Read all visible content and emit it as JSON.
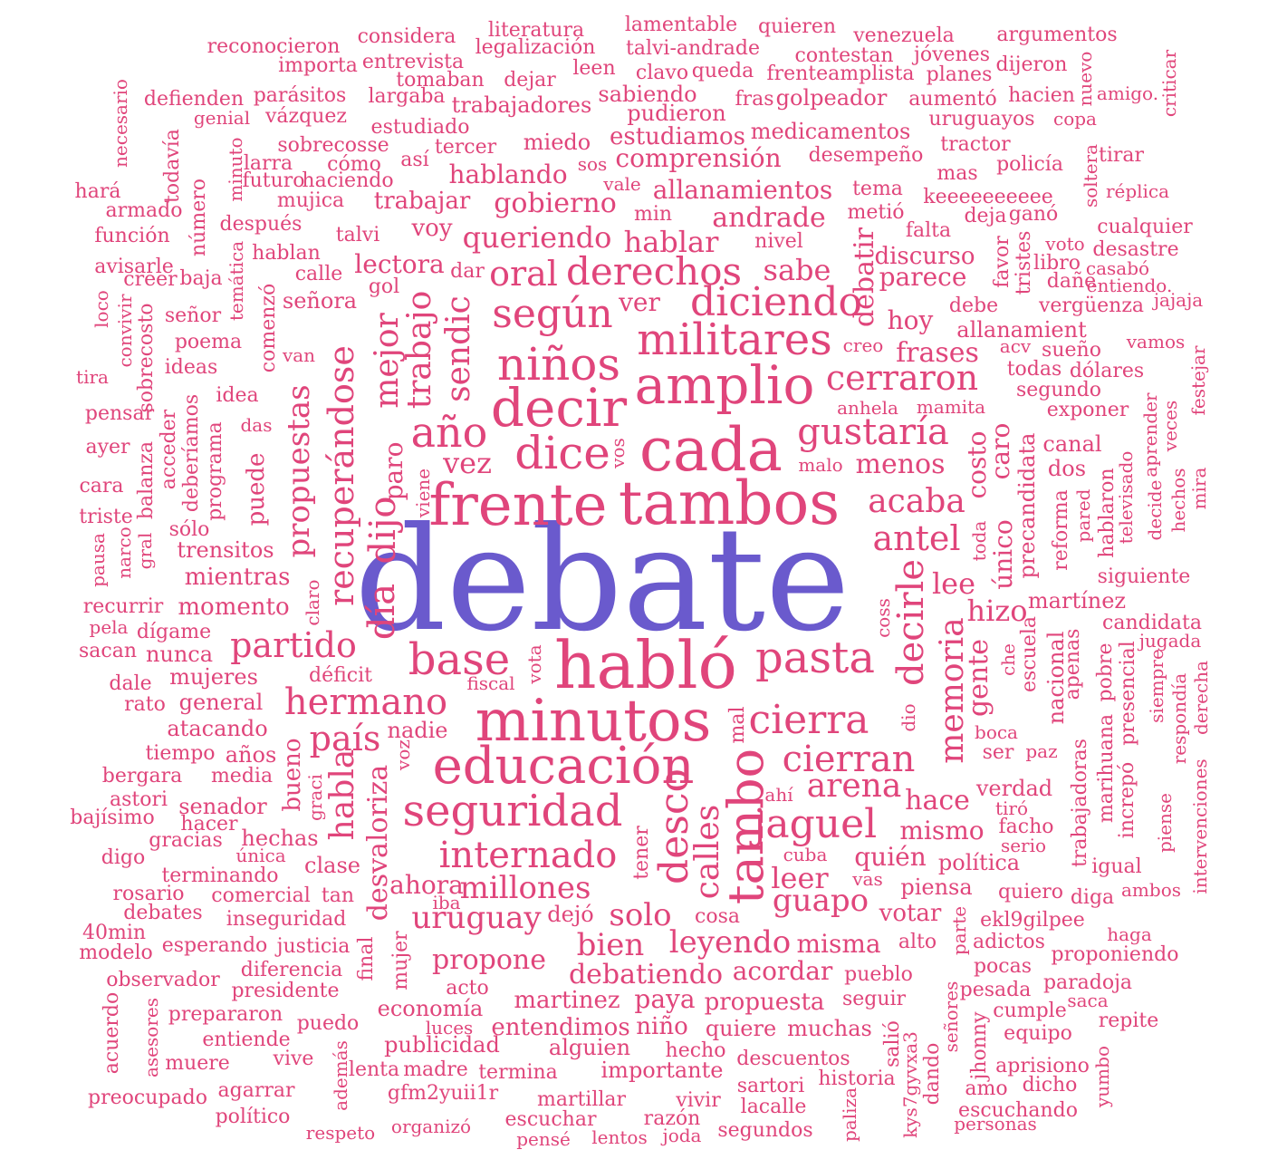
{
  "colors": {
    "primary": "#6a5acd",
    "secondary": "#e0457b",
    "background": "#ffffff"
  },
  "words": {
    "debate": "debate",
    "hablo": "habló",
    "minutos": "minutos",
    "tambos": "tambos",
    "frente": "frente",
    "cada": "cada",
    "amplio": "amplio",
    "educacion": "educación",
    "decir": "decir",
    "seguridad": "seguridad",
    "tambo": "tambo",
    "dice": "dice",
    "ninos": "niños",
    "militares": "militares",
    "internado": "internado",
    "base": "base",
    "pasta": "pasta",
    "diciendo": "diciendo",
    "cierra": "cierra",
    "hermano": "hermano",
    "ano": "año",
    "gustaria": "gustaría",
    "cerraron": "cerraron",
    "derechos": "derechos",
    "segun": "según",
    "cierran": "cierran",
    "desco": "desco",
    "recuperandose": "recuperándose",
    "dia": "día",
    "dijo": "dijo",
    "jaguel": "jaguel",
    "decirle": "decirle",
    "memoria": "memoria",
    "partido": "partido",
    "antel": "antel",
    "acaba": "acaba",
    "calles": "calles",
    "arena": "arena",
    "millones": "millones",
    "uruguay": "uruguay",
    "pais": "país",
    "oral": "oral",
    "sendic": "sendic",
    "propuestas": "propuestas",
    "mejor": "mejor",
    "trabajo": "trabajo",
    "habla": "habla",
    "desvaloriza": "desvaloriza",
    "guapo": "guapo",
    "leer": "leer",
    "leyendo": "leyendo",
    "solo": "solo",
    "bien": "bien",
    "propone": "propone",
    "debatiendo": "debatiendo",
    "queriendo": "queriendo",
    "hablar": "hablar",
    "andrade": "andrade",
    "sabe": "sabe",
    "hizo": "hizo",
    "lee": "lee",
    "gente": "gente",
    "hace": "hace",
    "mismo": "mismo",
    "quien": "quién",
    "gobierno": "gobierno",
    "hablando": "hablando",
    "allanamientos": "allanamientos",
    "comprension": "comprensión",
    "estudiamos": "estudiamos",
    "medicamentos": "medicamentos",
    "debatir": "debatir",
    "parece": "parece",
    "discurso": "discurso",
    "frases": "frases",
    "hoy": "hoy",
    "menos": "menos",
    "costo": "costo",
    "caro": "caro",
    "unico": "único",
    "precandidata": "precandidata",
    "vez": "vez",
    "paro": "paro",
    "ahora": "ahora",
    "votar": "votar",
    "piensa": "piensa",
    "misma": "misma",
    "acordar": "acordar",
    "paya": "paya",
    "martinez": "martinez",
    "propuesta": "propuesta",
    "entendimos": "entendimos",
    "nino": "niño",
    "quiere": "quiere",
    "muchas": "muchas",
    "alguien": "alguien",
    "hecho": "hecho",
    "importante": "importante",
    "descuentos": "descuentos",
    "termina": "termina",
    "martillar": "martillar",
    "sartori": "sartori",
    "lacalle": "lacalle",
    "historia": "historia",
    "vivir": "vivir",
    "razon": "razón",
    "escuchar": "escuchar",
    "joda": "joda",
    "segundos": "segundos",
    "lentos": "lentos",
    "pense": "pensé",
    "organizo": "organizó",
    "respeto": "respeto",
    "politico": "político",
    "agarrar": "agarrar",
    "preocupado": "preocupado",
    "muere": "muere",
    "vive": "vive",
    "ademas": "además",
    "lenta": "lenta",
    "madre": "madre",
    "gfm2yuii1r": "gfm2yuii1r",
    "publicidad": "publicidad",
    "luces": "luces",
    "economia": "economía",
    "acto": "acto",
    "puedo": "puedo",
    "entiende": "entiende",
    "prepararon": "prepararon",
    "asesores": "asesores",
    "acuerdo": "acuerdo",
    "observador": "observador",
    "presidente": "presidente",
    "diferencia": "diferencia",
    "esperando": "esperando",
    "justicia": "justicia",
    "modelo": "modelo",
    "40min": "40min",
    "inseguridad": "inseguridad",
    "debates": "debates",
    "comercial": "comercial",
    "rosario": "rosario",
    "tan": "tan",
    "iba": "iba",
    "terminando": "terminando",
    "unica": "única",
    "clase": "clase",
    "digo": "digo",
    "gracias": "gracias",
    "hechas": "hechas",
    "hacer": "hacer",
    "bajisimo": "bajísimo",
    "senador": "senador",
    "astori": "astori",
    "bergara": "bergara",
    "media": "media",
    "tiempo": "tiempo",
    "anos": "años",
    "atacando": "atacando",
    "general": "general",
    "rato": "rato",
    "mujeres": "mujeres",
    "deficit": "déficit",
    "dale": "dale",
    "nunca": "nunca",
    "sacan": "sacan",
    "digame": "dígame",
    "pela": "pela",
    "recurrir": "recurrir",
    "momento": "momento",
    "claro": "claro",
    "mientras": "mientras",
    "trensitos": "trensitos",
    "solo2": "sólo",
    "pausa": "pausa",
    "narco": "narco",
    "gral": "gral",
    "triste": "triste",
    "cara": "cara",
    "ayer": "ayer",
    "pensar": "pensar",
    "balanza": "balanza",
    "acceder": "acceder",
    "deberiamos": "deberíamos",
    "programa": "programa",
    "puede": "puede",
    "das": "das",
    "idea": "idea",
    "ideas": "ideas",
    "tira": "tira",
    "sobrecosto": "sobrecosto",
    "convivir": "convivir",
    "loco": "loco",
    "poema": "poema",
    "senor": "señor",
    "creer": "creer",
    "baja": "baja",
    "avisarle": "avisarle",
    "funcion": "función",
    "armado": "armado",
    "hara": "hará",
    "numero": "número",
    "tematica": "temática",
    "comenzo": "comenzó",
    "van": "van",
    "senora": "señora",
    "calle": "calle",
    "hablan": "hablan",
    "despues": "después",
    "mujica": "mujica",
    "futuro": "futuro",
    "haciendo": "haciendo",
    "larra": "larra",
    "como": "cómo",
    "sobrecosse": "sobrecosse",
    "talvi": "talvi",
    "lectora": "lectora",
    "gol": "gol",
    "dar": "dar",
    "voy": "voy",
    "trabajar": "trabajar",
    "asi": "así",
    "tercer": "tercer",
    "miedo": "miedo",
    "sos": "sos",
    "vale": "vale",
    "min": "min",
    "nivel": "nivel",
    "ver": "ver",
    "estudiado": "estudiado",
    "genial": "genial",
    "vazquez": "vázquez",
    "defienden": "defienden",
    "parasitos": "parásitos",
    "largaba": "largaba",
    "trabajadores": "trabajadores",
    "tomaban": "tomaban",
    "dejar": "dejar",
    "importa": "importa",
    "entrevista": "entrevista",
    "reconocieron": "reconocieron",
    "considera": "considera",
    "literatura": "literatura",
    "legalizacion": "legalización",
    "lamentable": "lamentable",
    "talvi_andrade": "talvi-andrade",
    "leen": "leen",
    "clavo": "clavo",
    "queda": "queda",
    "sabiendo": "sabiendo",
    "pudieron": "pudieron",
    "fras": "fras",
    "golpeador": "golpeador",
    "quieren": "quieren",
    "contestan": "contestan",
    "frenteamplista": "frenteamplista",
    "venezuela": "venezuela",
    "jovenes": "jóvenes",
    "planes": "planes",
    "argumentos": "argumentos",
    "dijeron": "dijeron",
    "nuevo": "nuevo",
    "aumento": "aumentó",
    "hacien": "hacien",
    "uruguayos": "uruguayos",
    "copa": "copa",
    "amigo": "amigo.",
    "criticar": "criticar",
    "necesario": "necesario",
    "todavia": "todavía",
    "minuto": "minuto",
    "tractor": "tractor",
    "desempeno": "desempeño",
    "mas": "mas",
    "policia": "policía",
    "soltera": "soltera",
    "tirar": "tirar",
    "replica": "réplica",
    "tema": "tema",
    "keeeeeeeeee": "keeeeeeeeee",
    "metio": "metió",
    "deja": "deja",
    "gano": "ganó",
    "falta": "falta",
    "cualquier": "cualquier",
    "favor": "favor",
    "tristes": "tristes",
    "voto": "voto",
    "desastre": "desastre",
    "libro": "libro",
    "casabo": "casabó",
    "dane": "dañe",
    "entiendo": "entiendo.",
    "debe": "debe",
    "verguenza": "vergüenza",
    "jajaja": "jajaja",
    "allanamient": "allanamient",
    "acv": "acv",
    "sueno": "sueño",
    "vamos": "vamos",
    "creo": "creo",
    "todas": "todas",
    "dolares": "dólares",
    "segundo": "segundo",
    "festejar": "festejar",
    "anhela": "anhela",
    "mamita": "mamita",
    "exponer": "exponer",
    "aprender": "aprender",
    "veces": "veces",
    "canal": "canal",
    "dos": "dos",
    "malo": "malo",
    "vos": "vos",
    "viene": "viene",
    "toda": "toda",
    "reforma": "reforma",
    "pared": "pared",
    "hablaron": "hablaron",
    "televisado": "televisado",
    "decide": "decide",
    "hechos": "hechos",
    "mira": "mira",
    "siguiente": "siguiente",
    "coss": "coss",
    "martinez2": "martínez",
    "candidata": "candidata",
    "jugada": "jugada",
    "che": "che",
    "escuela": "escuela",
    "nacional": "nacional",
    "apenas": "apenas",
    "pobre": "pobre",
    "presencial": "presencial",
    "marihuana": "marihuana",
    "siempre": "siempre",
    "respondia": "respondía",
    "derecha": "derecha",
    "vota": "vota",
    "fiscal": "fiscal",
    "mal": "mal",
    "dio": "dio",
    "boca": "boca",
    "ser": "ser",
    "paz": "paz",
    "trabajadoras": "trabajadoras",
    "increpo": "increpó",
    "piense": "piense",
    "intervenciones": "intervenciones",
    "nadie": "nadie",
    "voz": "voz",
    "bueno": "bueno",
    "graci": "graci",
    "ahi": "ahí",
    "verdad": "verdad",
    "tiro": "tiró",
    "facho": "facho",
    "serio": "serio",
    "cuba": "cuba",
    "politica": "política",
    "igual": "igual",
    "vas": "vas",
    "quiero": "quiero",
    "diga": "diga",
    "ambos": "ambos",
    "tener": "tener",
    "dejo": "dejó",
    "cosa": "cosa",
    "alto": "alto",
    "parte": "parte",
    "ekl9gilpee": "ekl9gilpee",
    "adictos": "adictos",
    "haga": "haga",
    "pocas": "pocas",
    "proponiendo": "proponiendo",
    "final": "final",
    "mujer": "mujer",
    "pueblo": "pueblo",
    "seguir": "seguir",
    "senores": "señores",
    "pesada": "pesada",
    "paradoja": "paradoja",
    "cumple": "cumple",
    "saca": "saca",
    "repite": "repite",
    "equipo": "equipo",
    "jhonny": "jhonny",
    "salio": "salió",
    "kys7gyvxa3": "kys7gyvxa3",
    "dando": "dando",
    "aprisiono": "aprisiono",
    "yumbo": "yumbo",
    "amo": "amo",
    "dicho": "dicho",
    "escuchando": "escuchando",
    "personas": "personas",
    "paliza": "paliza",
    "ser2": "ser"
  }
}
